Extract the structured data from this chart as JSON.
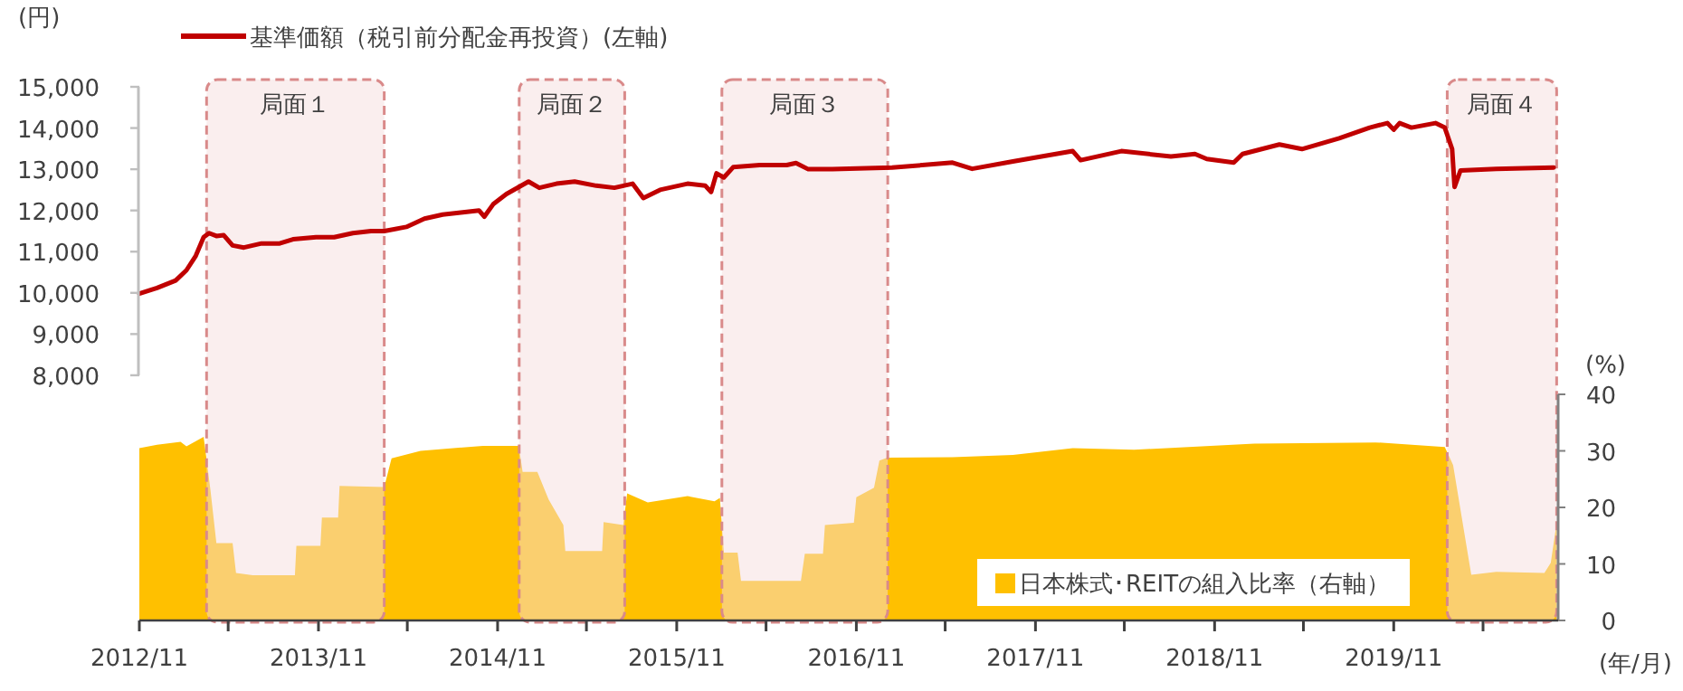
{
  "chart_data": {
    "type": "line",
    "ylabel": "(円)",
    "y2label": "(%)",
    "xlabel": "(年/月)",
    "xlim": [
      "2012-11-01",
      "2020-10-01"
    ],
    "xticks": [
      {
        "value": "2012-11",
        "label": "2012/11"
      },
      {
        "value": "2013-05",
        "label": null
      },
      {
        "value": "2013-11",
        "label": "2013/11"
      },
      {
        "value": "2014-05",
        "label": null
      },
      {
        "value": "2014-11",
        "label": "2014/11"
      },
      {
        "value": "2015-05",
        "label": null
      },
      {
        "value": "2015-11",
        "label": "2015/11"
      },
      {
        "value": "2016-05",
        "label": null
      },
      {
        "value": "2016-11",
        "label": "2016/11"
      },
      {
        "value": "2017-05",
        "label": null
      },
      {
        "value": "2017-11",
        "label": "2017/11"
      },
      {
        "value": "2018-05",
        "label": null
      },
      {
        "value": "2018-11",
        "label": "2018/11"
      },
      {
        "value": "2019-05",
        "label": null
      },
      {
        "value": "2019-11",
        "label": "2019/11"
      },
      {
        "value": "2020-05",
        "label": null
      }
    ],
    "ylim": [
      2050,
      15000
    ],
    "yticks": [
      {
        "value": 8000,
        "label": "8,000"
      },
      {
        "value": 9000,
        "label": "9,000"
      },
      {
        "value": 10000,
        "label": "10,000"
      },
      {
        "value": 11000,
        "label": "11,000"
      },
      {
        "value": 12000,
        "label": "12,000"
      },
      {
        "value": 13000,
        "label": "13,000"
      },
      {
        "value": 14000,
        "label": "14,000"
      },
      {
        "value": 15000,
        "label": "15,000"
      }
    ],
    "y2lim": [
      0,
      40
    ],
    "y2ticks": [
      0,
      10,
      20,
      30,
      40
    ],
    "legend": "top",
    "grid": false,
    "bands": [
      {
        "axis": "x",
        "from": "2013-03-18",
        "to": "2014-03-15",
        "label": "局面１",
        "color": "#f5dede"
      },
      {
        "axis": "x",
        "from": "2014-12-15",
        "to": "2015-07-18",
        "label": "局面２",
        "color": "#f5dede"
      },
      {
        "axis": "x",
        "from": "2016-02-01",
        "to": "2017-01-04",
        "label": "局面３",
        "color": "#f5dede"
      },
      {
        "axis": "x",
        "from": "2020-02-18",
        "to": "2020-09-28",
        "label": "局面４",
        "color": "#f5dede"
      }
    ],
    "series": [
      {
        "name": "日本株式･REITの組入比率（右軸）",
        "type": "area",
        "axis": "y2",
        "color": "#ffc000",
        "x": [
          "2012-11-01",
          "2012-12-07",
          "2013-01-24",
          "2013-02-05",
          "2013-03-12",
          "2013-03-26",
          "2013-04-07",
          "2013-05-10",
          "2013-05-17",
          "2013-06-20",
          "2013-09-14",
          "2013-09-17",
          "2013-11-05",
          "2013-11-08",
          "2013-12-11",
          "2013-12-14",
          "2014-03-15",
          "2014-03-30",
          "2014-05-28",
          "2014-10-02",
          "2014-12-14",
          "2014-12-22",
          "2015-01-21",
          "2015-02-13",
          "2015-03-15",
          "2015-03-19",
          "2015-06-02",
          "2015-06-05",
          "2015-07-15",
          "2015-07-23",
          "2015-09-03",
          "2015-11-23",
          "2016-01-17",
          "2016-01-28",
          "2016-02-05",
          "2016-03-04",
          "2016-03-11",
          "2016-07-11",
          "2016-07-19",
          "2016-08-25",
          "2016-08-29",
          "2016-10-27",
          "2016-11-01",
          "2016-12-07",
          "2016-12-18",
          "2017-01-03",
          "2017-05-16",
          "2017-09-16",
          "2018-01-16",
          "2018-05-21",
          "2019-01-21",
          "2019-09-25",
          "2020-02-13",
          "2020-03-01",
          "2020-04-07",
          "2020-05-28",
          "2020-09-03",
          "2020-09-16",
          "2020-09-28"
        ],
        "values": [
          30.5,
          31.1,
          31.6,
          30.8,
          32.5,
          23.0,
          13.7,
          13.7,
          8.4,
          8.0,
          8.0,
          13.2,
          13.2,
          18.2,
          18.2,
          23.8,
          23.6,
          28.7,
          30.0,
          30.9,
          30.9,
          26.3,
          26.3,
          21.4,
          16.9,
          12.3,
          12.3,
          17.4,
          16.9,
          22.5,
          20.9,
          22.0,
          21.1,
          21.7,
          12.0,
          12.0,
          7.0,
          7.0,
          11.8,
          11.8,
          16.9,
          17.3,
          21.8,
          23.5,
          28.3,
          28.8,
          28.9,
          29.3,
          30.5,
          30.2,
          31.3,
          31.5,
          30.7,
          27.5,
          8.1,
          8.6,
          8.4,
          10.2,
          17.3
        ]
      },
      {
        "name": "基準価額（税引前分配金再投資）(左軸)",
        "axis": "y",
        "color": "#c00000",
        "x": [
          "2012-11-01",
          "2012-12-07",
          "2013-01-14",
          "2013-02-05",
          "2013-02-24",
          "2013-03-12",
          "2013-03-23",
          "2013-04-07",
          "2013-04-22",
          "2013-05-10",
          "2013-06-02",
          "2013-07-08",
          "2013-08-14",
          "2013-09-10",
          "2013-10-27",
          "2013-12-03",
          "2014-01-10",
          "2014-02-16",
          "2014-03-15",
          "2014-04-29",
          "2014-06-05",
          "2014-07-12",
          "2014-08-18",
          "2014-09-24",
          "2014-10-05",
          "2014-10-23",
          "2014-11-19",
          "2015-01-03",
          "2015-01-25",
          "2015-03-01",
          "2015-04-07",
          "2015-05-21",
          "2015-06-27",
          "2015-08-03",
          "2015-08-25",
          "2015-09-28",
          "2015-11-23",
          "2015-12-29",
          "2016-01-10",
          "2016-01-21",
          "2016-02-05",
          "2016-02-24",
          "2016-04-18",
          "2016-06-12",
          "2016-07-01",
          "2016-07-26",
          "2016-09-13",
          "2017-01-13",
          "2017-05-16",
          "2017-06-25",
          "2017-09-16",
          "2018-01-16",
          "2018-02-01",
          "2018-04-25",
          "2018-08-04",
          "2018-09-22",
          "2018-10-16",
          "2018-12-10",
          "2018-12-28",
          "2019-03-13",
          "2019-04-28",
          "2019-07-13",
          "2019-09-13",
          "2019-10-19",
          "2019-11-01",
          "2019-11-13",
          "2019-12-07",
          "2020-01-25",
          "2020-02-13",
          "2020-02-28",
          "2020-03-04",
          "2020-03-16",
          "2020-05-28",
          "2020-09-22"
        ],
        "values": [
          9980,
          10120,
          10300,
          10550,
          10900,
          11350,
          11450,
          11380,
          11400,
          11150,
          11100,
          11200,
          11200,
          11300,
          11350,
          11350,
          11450,
          11500,
          11500,
          11600,
          11800,
          11900,
          11950,
          12000,
          11850,
          12150,
          12400,
          12700,
          12550,
          12650,
          12700,
          12600,
          12550,
          12650,
          12300,
          12500,
          12650,
          12600,
          12450,
          12900,
          12800,
          13050,
          13100,
          13100,
          13150,
          13000,
          13000,
          13040,
          13160,
          13010,
          13190,
          13440,
          13220,
          13440,
          13310,
          13370,
          13250,
          13160,
          13370,
          13600,
          13490,
          13750,
          14010,
          14120,
          13960,
          14120,
          14010,
          14120,
          14010,
          13490,
          12570,
          12970,
          13010,
          13040
        ]
      }
    ]
  }
}
